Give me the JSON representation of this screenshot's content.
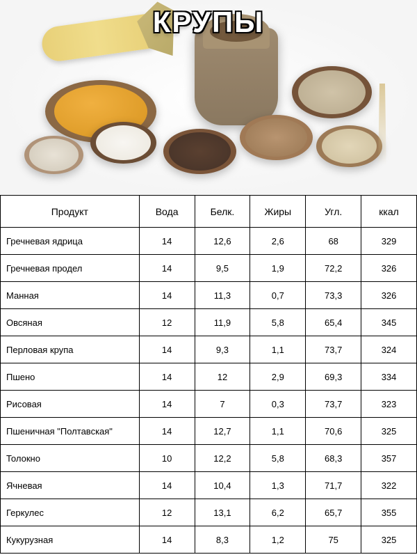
{
  "title": "Крупы",
  "table": {
    "columns": [
      "Продукт",
      "Вода",
      "Белк.",
      "Жиры",
      "Угл.",
      "ккал"
    ],
    "rows": [
      [
        "Гречневая ядрица",
        "14",
        "12,6",
        "2,6",
        "68",
        "329"
      ],
      [
        "Гречневая продел",
        "14",
        "9,5",
        "1,9",
        "72,2",
        "326"
      ],
      [
        "Манная",
        "14",
        "11,3",
        "0,7",
        "73,3",
        "326"
      ],
      [
        "Овсяная",
        "12",
        "11,9",
        "5,8",
        "65,4",
        "345"
      ],
      [
        "Перловая крупа",
        "14",
        "9,3",
        "1,1",
        "73,7",
        "324"
      ],
      [
        "Пшено",
        "14",
        "12",
        "2,9",
        "69,3",
        "334"
      ],
      [
        "Рисовая",
        "14",
        "7",
        "0,3",
        "73,7",
        "323"
      ],
      [
        "Пшеничная \"Полтавская\"",
        "14",
        "12,7",
        "1,1",
        "70,6",
        "325"
      ],
      [
        "Толокно",
        "10",
        "12,2",
        "5,8",
        "68,3",
        "357"
      ],
      [
        "Ячневая",
        "14",
        "10,4",
        "1,3",
        "71,7",
        "322"
      ],
      [
        "Геркулес",
        "12",
        "13,1",
        "6,2",
        "65,7",
        "355"
      ],
      [
        "Кукурузная",
        "14",
        "8,3",
        "1,2",
        "75",
        "325"
      ]
    ],
    "border_color": "#000000",
    "header_font_size": 14,
    "cell_font_size": 13,
    "product_col_width": 200,
    "value_col_width": 80,
    "header_row_height": 46,
    "body_row_height": 39,
    "text_align_first_col": "left",
    "text_align_other_cols": "center"
  },
  "hero": {
    "background": "#ffffff",
    "title_color": "#ffffff",
    "title_outline": "#000000",
    "title_fontsize": 42,
    "scene": {
      "corn_color": "#e8d078",
      "sack_color": "#8a7860",
      "bowl_colors": [
        "#8b6844",
        "#b09378",
        "#6b4d35",
        "#7a5438",
        "#a07955",
        "#755339",
        "#9c7a56"
      ],
      "grain_fills": [
        "#f0b040",
        "#e8e2d6",
        "#f8f6f2",
        "#5a4030",
        "#b89470",
        "#d0c3a8",
        "#e2d6b8"
      ],
      "wheat_color": "#d6c088"
    }
  }
}
